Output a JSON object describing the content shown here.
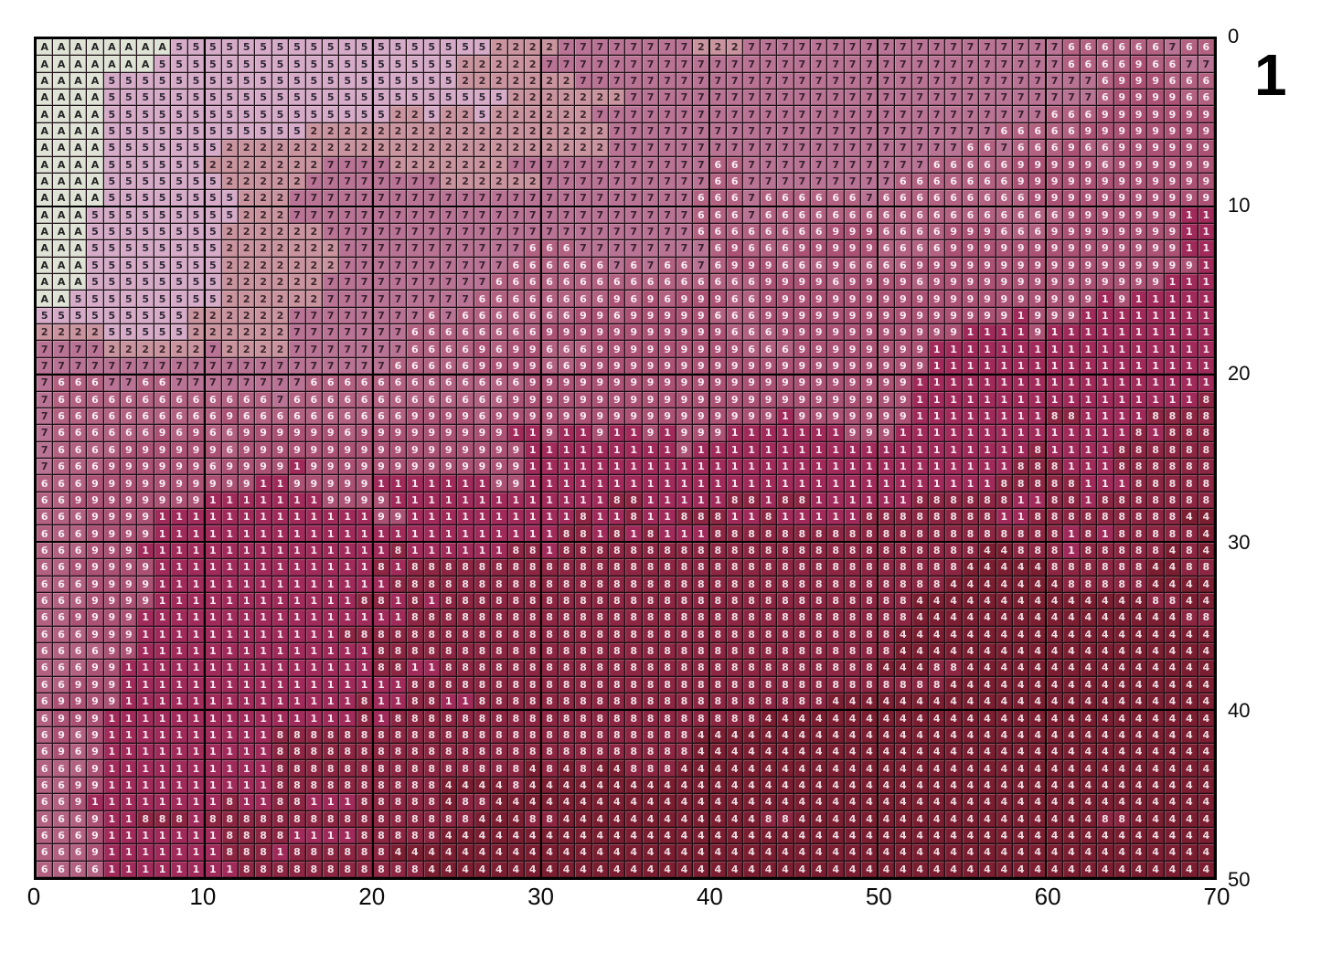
{
  "page": {
    "page_number_label": "1",
    "background": "#ffffff"
  },
  "chart_data": {
    "type": "heatmap",
    "title": "",
    "xlabel": "",
    "ylabel": "",
    "grid": {
      "columns": 70,
      "rows": 50,
      "major_grid_every": 10,
      "grid_on": true,
      "thin_line_color": "#1d0d13",
      "major_line_color": "#000000",
      "border_color": "#000000"
    },
    "x_ticks": [
      "0",
      "10",
      "20",
      "30",
      "40",
      "50",
      "60",
      "70"
    ],
    "y_ticks": [
      "0",
      "10",
      "20",
      "30",
      "40",
      "50"
    ],
    "legend_position": "none",
    "legend": [
      {
        "symbol": "A",
        "bg": "#dfe3d6",
        "fg": "#222222"
      },
      {
        "symbol": "5",
        "bg": "#d5abc8",
        "fg": "#2e2633"
      },
      {
        "symbol": "2",
        "bg": "#c9949e",
        "fg": "#3b262c"
      },
      {
        "symbol": "7",
        "bg": "#b97394",
        "fg": "#38202e"
      },
      {
        "symbol": "6",
        "bg": "#b26180",
        "fg": "#f7edf2"
      },
      {
        "symbol": "9",
        "bg": "#ab5174",
        "fg": "#f7edf2"
      },
      {
        "symbol": "1",
        "bg": "#a02b5b",
        "fg": "#f6ebf0"
      },
      {
        "symbol": "8",
        "bg": "#8d2643",
        "fg": "#efe2e7"
      },
      {
        "symbol": "4",
        "bg": "#7b1e31",
        "fg": "#eddfe3"
      }
    ],
    "rows": [
      "AAAAAAAA555555555555555555522227777777722277777777777777777776666667666",
      "AAAAAAA5555555555555555552222277777777777777777777777777777776666966776",
      "AAAA5555555555555555555552222222777777777777777777777777777777769996666",
      "AAAA5555555555555555555555552222222777777777777777777777777777769999666",
      "AAAA5555555555555555522522522222277777777777777777777777777766699999999",
      "AAAA5555555555552222222222222222227777777777777777777777766666999999999",
      "AAAA5555555222222222222222222222227777777777777777777776676669669999999",
      "AAAA5555552222222777722222227777777777776677777777777666669999969999999",
      "AAAA5555555222227777777722222277777777776677777777766666669999999999999",
      "AAAA5555555522277777777777777777777777766676666667666666666999999999999",
      "AAA55555555522277777777777777777777777766676666666666666666669999999119",
      "AAA55555555222222777777777777777777777766666666999666699966699999999111",
      "AAA55555555222222277777777777666777777776966699999666699999999999999111",
      "AAA55555555222222277777777776666667676676999666966669999999999999999911",
      "AAA55555555222222777777777766666666666666669999699996999999999999991111",
      "AA555555555222222777777777666666669696999669999999999999999999919111111",
      "55555555522222277777777676666666996999996669999999999999991999111111111",
      "22225555522222277777776666666699999999999666999999999991111911111111111",
      "77772222227222277777776666969966699999999966699999999111111111111111111",
      "77777777777777777777766666999966999999999999999999999111111111111111111",
      "76667766777777776666666666666999999999999999999999991111111111111111118",
      "76666666666666766666666666669999999999999999999999991111111111111111188",
      "76666666666966666666669999699999999999999999199999991111111188111188888",
      "76666669696699999969999999991191191191999111111199911111111111111818888",
      "76666999999699999999999999999111111111911111111111111111111811118888888",
      "76669999996999919999999999999111111111111111111111111111118881118888888",
      "66699999999991199999111111199111111111111111111111111111188888111888888",
      "66999999991111111999911111111111118811111881881111118888881188188888888",
      "66699991111111111111991111111111811811888118111118888888811888888888444",
      "66699991111111111111111111111118818181118888888888888888888881818888844",
      "66699911111111111111181111118818888888888888888888888888448881888884 84",
      "66999991111111111111818888888888888888888888888888888884444488888844 88",
      "66699991111111111111188888888888888888888888888888888844444448888844 44",
      "66699991111111111118818188888888888888888888888888884444444444444488444",
      "66999911111111111111118888888888888888888888888888884444444444444444884",
      "66699911111111111188888888888888888888888888888888844444444444444444448",
      "66669911111111111111888888888888888888888888888888844444444444444444444",
      "66699111111111111111881188888888888888888888888888444884444444444444444",
      "66999111111111111111118888888888888888888888888888888844444444444444444",
      "69999111111111111118118811888888888888888888888444444444444444444444444",
      "69991111111111111118188888888888888888888884444444444444444444444444444",
      "69691111111111888888888888888888888888844444444444444444444444444444444",
      "69691111111111888888888888888888888888844444444444444444444444444444444",
      "66691111111111888888888888888484844888444444444444444444444444444444444",
      "66991111111111888888888844448444444444444444444444444444444444444444444",
      "66911111111811881118888848844444444444444444444444444444444444444444444",
      "66691188818888888888888888444884444444444448844444444444444444488444444",
      "66691111111888811118888844444444444444444444444444444444444444444444444",
      "66691111111888188888844444444444444444444444444444444444444444444444444",
      "66661111111188888888888444444444444444444444444444444444444444444444444"
    ]
  }
}
